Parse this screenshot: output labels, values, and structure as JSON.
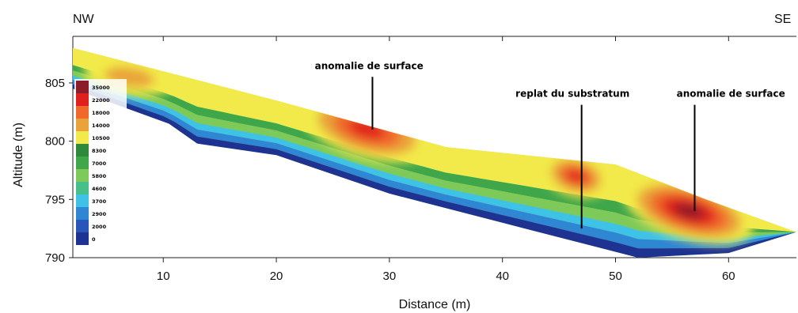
{
  "orientation": {
    "left": "NW",
    "right": "SE"
  },
  "chart_data": {
    "type": "heatmap",
    "title": "",
    "xlabel": "Distance (m)",
    "ylabel": "Altitude (m)",
    "xlim": [
      2,
      66
    ],
    "ylim": [
      790,
      809
    ],
    "x_ticks": [
      10,
      20,
      30,
      40,
      50,
      60
    ],
    "y_ticks": [
      790,
      795,
      800,
      805
    ],
    "grid": false,
    "legend": {
      "placement": "left-inside"
    },
    "color_scale": [
      {
        "value": "35000",
        "color": "#8c1c2a"
      },
      {
        "value": "22000",
        "color": "#e0201e"
      },
      {
        "value": "18000",
        "color": "#f0682a"
      },
      {
        "value": "14000",
        "color": "#e9a33a"
      },
      {
        "value": "10500",
        "color": "#f2ea4a"
      },
      {
        "value": "8300",
        "color": "#2e8a3a"
      },
      {
        "value": "7000",
        "color": "#3fa64a"
      },
      {
        "value": "5800",
        "color": "#7dc95a"
      },
      {
        "value": "4600",
        "color": "#45c08a"
      },
      {
        "value": "3700",
        "color": "#3ec2e6"
      },
      {
        "value": "2900",
        "color": "#2f86d3"
      },
      {
        "value": "2000",
        "color": "#2855b8"
      },
      {
        "value": "0",
        "color": "#1e3391"
      }
    ],
    "section": {
      "surface": [
        [
          2,
          808
        ],
        [
          20,
          803.5
        ],
        [
          35,
          799.5
        ],
        [
          50,
          798
        ],
        [
          58,
          795
        ],
        [
          66,
          792.2
        ]
      ],
      "bottom": [
        [
          66,
          792.2
        ],
        [
          60,
          790.4
        ],
        [
          52,
          790
        ],
        [
          42,
          792.5
        ],
        [
          30,
          795.5
        ],
        [
          20,
          798.8
        ],
        [
          13,
          799.8
        ],
        [
          10.5,
          801.5
        ],
        [
          2,
          804.5
        ]
      ]
    },
    "anomalies": [
      {
        "x": 7,
        "y": 805.5,
        "level": "14000"
      },
      {
        "x": 28,
        "y": 801,
        "level": "22000"
      },
      {
        "x": 46.5,
        "y": 797,
        "level": "22000"
      },
      {
        "x": 56.5,
        "y": 794,
        "level": "35000"
      }
    ],
    "annotations": [
      {
        "text": "anomalie de surface",
        "text_x": 28.2,
        "text_y": 806.2,
        "x": 28.5,
        "y": 801
      },
      {
        "text": "replat du substratum",
        "text_x": 46.2,
        "text_y": 803.8,
        "x": 47,
        "y": 792.5
      },
      {
        "text": "anomalie de surface",
        "text_x": 60.2,
        "text_y": 803.8,
        "x": 57,
        "y": 794
      }
    ]
  }
}
